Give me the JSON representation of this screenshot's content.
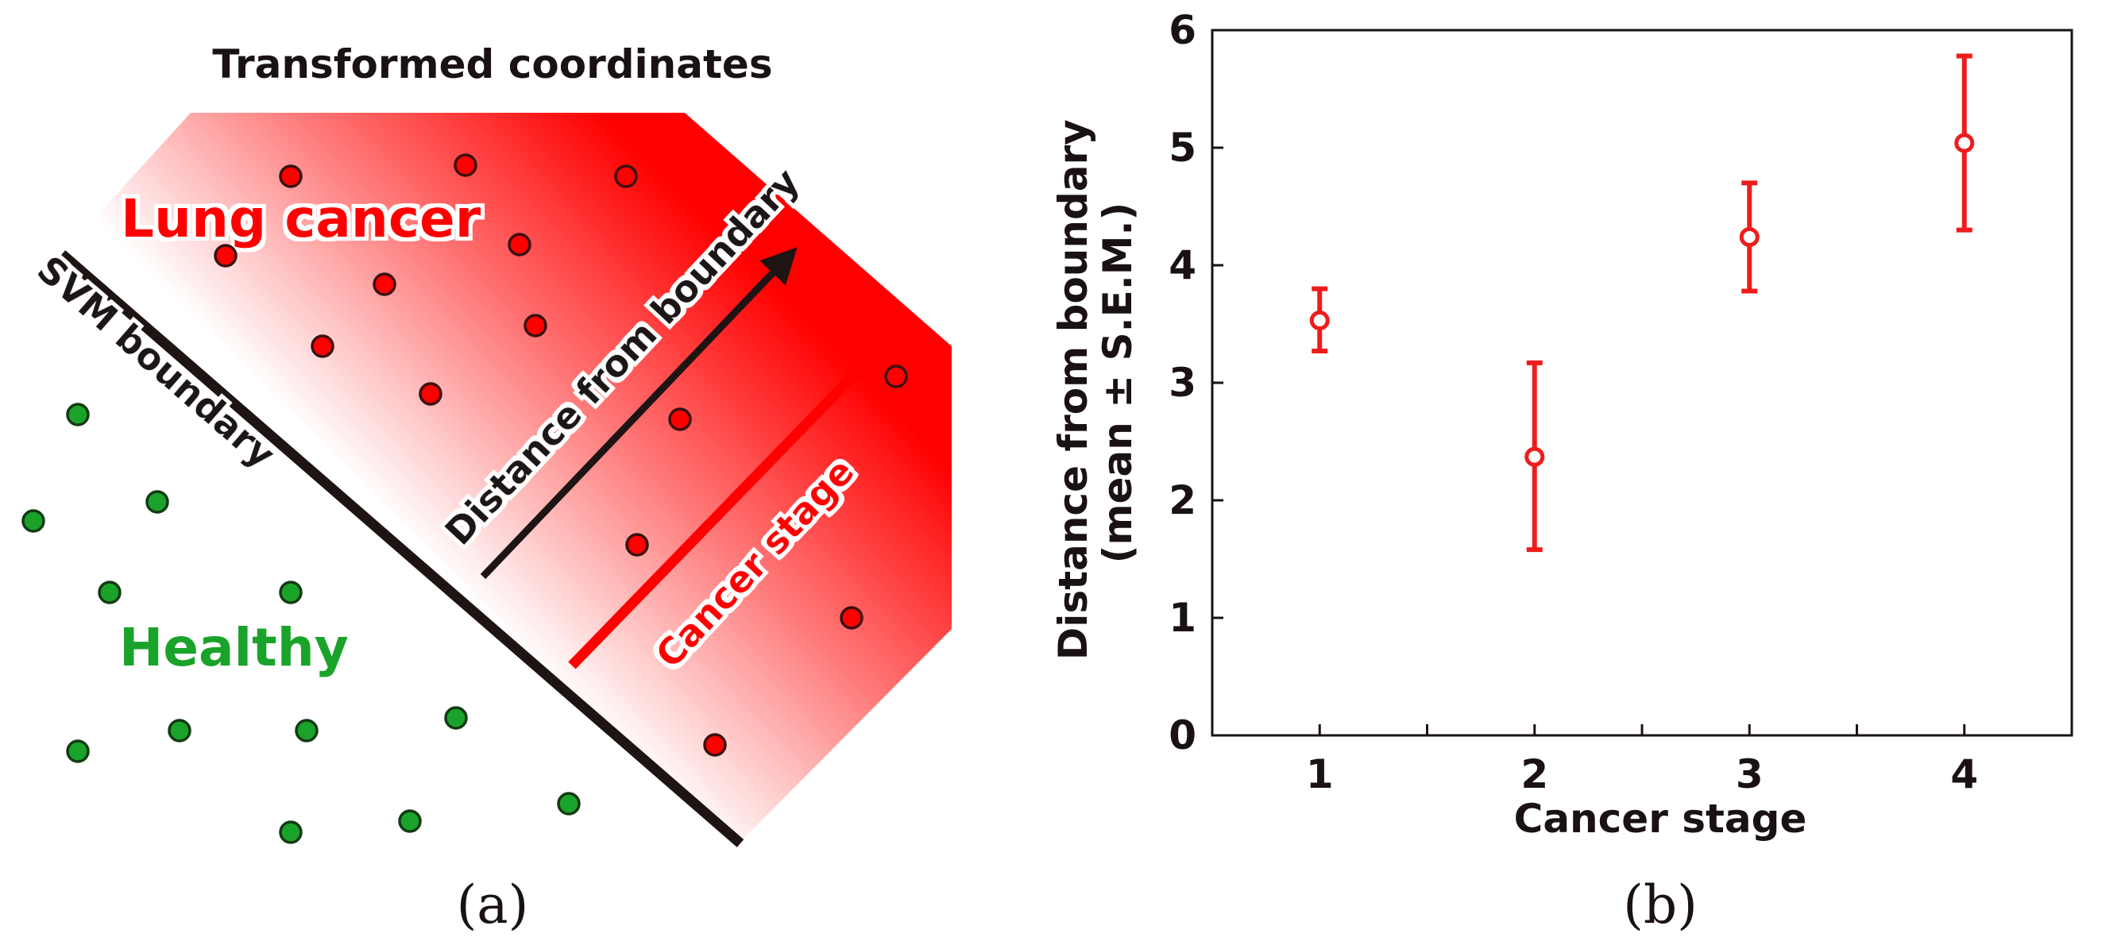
{
  "panel_a": {
    "title": "Transformed coordinates",
    "region_cancer_label": "Lung cancer",
    "region_healthy_label": "Healthy",
    "boundary_label": "SVM boundary",
    "arrow_distance_label": "Distance from boundary",
    "arrow_stage_label": "Cancer stage",
    "caption": "(a)",
    "colors": {
      "cancer": "#ff0000",
      "healthy": "#1aa32a",
      "boundary": "#1e1414"
    }
  },
  "panel_b": {
    "caption": "(b)"
  },
  "chart_data": {
    "type": "scatter",
    "title": "",
    "xlabel": "Cancer stage",
    "ylabel_line1": "Distance from boundary",
    "ylabel_line2": "(mean ± S.E.M.)",
    "xlim": [
      0.5,
      4.5
    ],
    "ylim": [
      0,
      6
    ],
    "x_ticks": [
      1,
      2,
      3,
      4
    ],
    "x_tick_labels": [
      "1",
      "2",
      "3",
      "4"
    ],
    "y_ticks": [
      0,
      1,
      2,
      3,
      4,
      5,
      6
    ],
    "y_tick_labels": [
      "0",
      "1",
      "2",
      "3",
      "4",
      "5",
      "6"
    ],
    "grid": false,
    "color": "#ee1c1c",
    "points": [
      {
        "x": 1,
        "mean": 3.53,
        "lower": 3.27,
        "upper": 3.8
      },
      {
        "x": 2,
        "mean": 2.37,
        "lower": 1.58,
        "upper": 3.17
      },
      {
        "x": 3,
        "mean": 4.24,
        "lower": 3.78,
        "upper": 4.7
      },
      {
        "x": 4,
        "mean": 5.04,
        "lower": 4.3,
        "upper": 5.78
      }
    ]
  }
}
